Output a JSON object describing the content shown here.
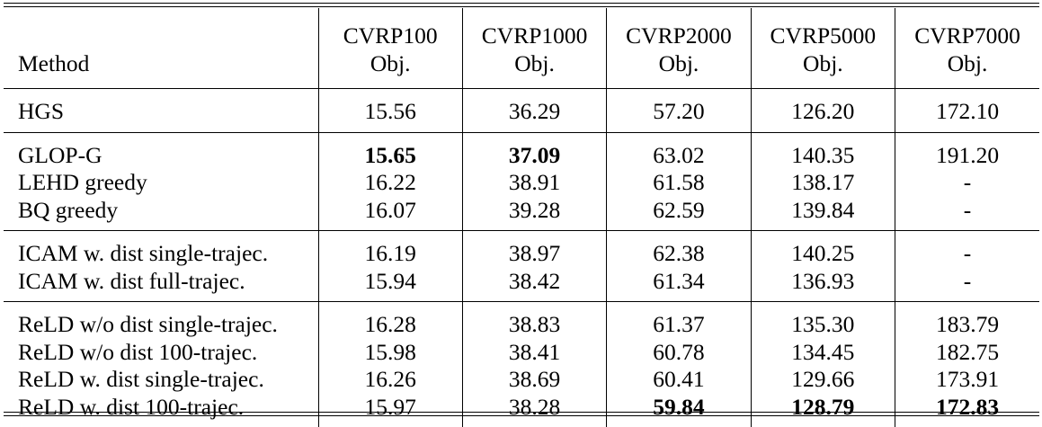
{
  "table": {
    "method_header": "Method",
    "columns": [
      {
        "name": "CVRP100",
        "sub": "Obj."
      },
      {
        "name": "CVRP1000",
        "sub": "Obj."
      },
      {
        "name": "CVRP2000",
        "sub": "Obj."
      },
      {
        "name": "CVRP5000",
        "sub": "Obj."
      },
      {
        "name": "CVRP7000",
        "sub": "Obj."
      }
    ],
    "groups": [
      [
        {
          "method": "HGS",
          "values": [
            "15.56",
            "36.29",
            "57.20",
            "126.20",
            "172.10"
          ],
          "bold": [
            false,
            false,
            false,
            false,
            false
          ]
        }
      ],
      [
        {
          "method": "GLOP-G",
          "values": [
            "15.65",
            "37.09",
            "63.02",
            "140.35",
            "191.20"
          ],
          "bold": [
            true,
            true,
            false,
            false,
            false
          ]
        },
        {
          "method": "LEHD greedy",
          "values": [
            "16.22",
            "38.91",
            "61.58",
            "138.17",
            "-"
          ],
          "bold": [
            false,
            false,
            false,
            false,
            false
          ]
        },
        {
          "method": "BQ greedy",
          "values": [
            "16.07",
            "39.28",
            "62.59",
            "139.84",
            "-"
          ],
          "bold": [
            false,
            false,
            false,
            false,
            false
          ]
        }
      ],
      [
        {
          "method": "ICAM w. dist single-trajec.",
          "values": [
            "16.19",
            "38.97",
            "62.38",
            "140.25",
            "-"
          ],
          "bold": [
            false,
            false,
            false,
            false,
            false
          ]
        },
        {
          "method": "ICAM w. dist full-trajec.",
          "values": [
            "15.94",
            "38.42",
            "61.34",
            "136.93",
            "-"
          ],
          "bold": [
            false,
            false,
            false,
            false,
            false
          ]
        }
      ],
      [
        {
          "method": "ReLD w/o dist single-trajec.",
          "values": [
            "16.28",
            "38.83",
            "61.37",
            "135.30",
            "183.79"
          ],
          "bold": [
            false,
            false,
            false,
            false,
            false
          ]
        },
        {
          "method": "ReLD w/o dist 100-trajec.",
          "values": [
            "15.98",
            "38.41",
            "60.78",
            "134.45",
            "182.75"
          ],
          "bold": [
            false,
            false,
            false,
            false,
            false
          ]
        },
        {
          "method": "ReLD w. dist single-trajec.",
          "values": [
            "16.26",
            "38.69",
            "60.41",
            "129.66",
            "173.91"
          ],
          "bold": [
            false,
            false,
            false,
            false,
            false
          ]
        },
        {
          "method": "ReLD w. dist 100-trajec.",
          "values": [
            "15.97",
            "38.28",
            "59.84",
            "128.79",
            "172.83"
          ],
          "bold": [
            false,
            false,
            true,
            true,
            true
          ]
        }
      ]
    ]
  }
}
